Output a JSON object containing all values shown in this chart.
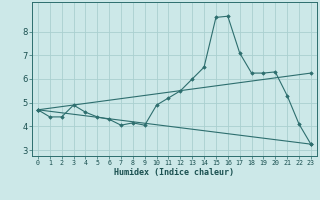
{
  "xlabel": "Humidex (Indice chaleur)",
  "x": [
    0,
    1,
    2,
    3,
    4,
    5,
    6,
    7,
    8,
    9,
    10,
    11,
    12,
    13,
    14,
    15,
    16,
    17,
    18,
    19,
    20,
    21,
    22,
    23
  ],
  "line1": [
    4.7,
    4.4,
    4.4,
    4.9,
    4.6,
    4.4,
    4.3,
    4.05,
    4.15,
    4.05,
    4.9,
    5.2,
    5.5,
    6.0,
    6.5,
    8.6,
    8.65,
    7.1,
    6.25,
    6.25,
    6.3,
    5.3,
    4.1,
    3.25
  ],
  "line3_x": [
    0,
    23
  ],
  "line3_y": [
    4.7,
    3.25
  ],
  "line4_x": [
    0,
    23
  ],
  "line4_y": [
    4.7,
    6.25
  ],
  "bg_color": "#cce8e8",
  "grid_color": "#aad0d0",
  "line_color": "#2d6e6e",
  "ylim": [
    2.75,
    9.25
  ],
  "xlim": [
    -0.5,
    23.5
  ],
  "yticks": [
    3,
    4,
    5,
    6,
    7,
    8
  ],
  "xticks": [
    0,
    1,
    2,
    3,
    4,
    5,
    6,
    7,
    8,
    9,
    10,
    11,
    12,
    13,
    14,
    15,
    16,
    17,
    18,
    19,
    20,
    21,
    22,
    23
  ]
}
